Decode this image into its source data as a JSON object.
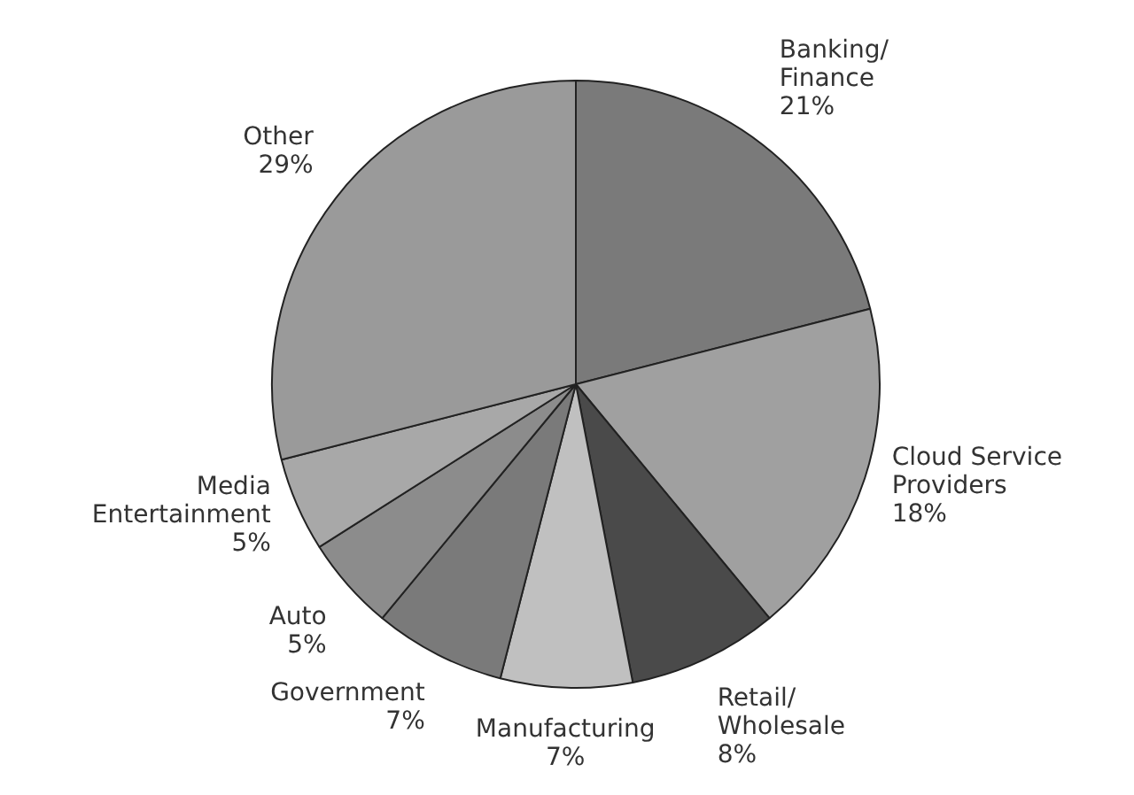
{
  "chart_data": {
    "type": "pie",
    "categories": [
      "Banking/Finance",
      "Cloud Service Providers",
      "Retail/Wholesale",
      "Manufacturing",
      "Government",
      "Auto",
      "Media Entertainment",
      "Other"
    ],
    "values": [
      21,
      18,
      8,
      7,
      7,
      5,
      5,
      29
    ],
    "colors": [
      "#7a7a7a",
      "#a0a0a0",
      "#4a4a4a",
      "#c0c0c0",
      "#7a7a7a",
      "#8c8c8c",
      "#a8a8a8",
      "#9a9a9a"
    ],
    "value_labels": [
      "21%",
      "18%",
      "8%",
      "7%",
      "7%",
      "5%",
      "5%",
      "29%"
    ],
    "legend": false
  }
}
